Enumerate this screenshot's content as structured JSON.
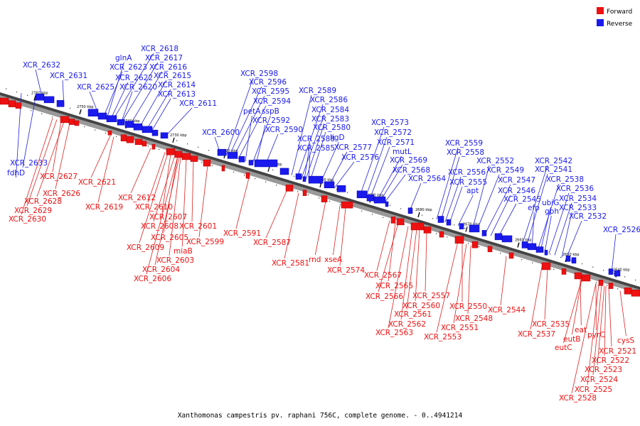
{
  "colors": {
    "forward": "#ee1111",
    "reverse": "#1a1aee",
    "forward_line": "#dd2222",
    "reverse_line": "#2222dd"
  },
  "legend": {
    "forward_label": "Forward",
    "reverse_label": "Reverse"
  },
  "caption": "Xanthomonas campestris pv. raphani 756C, complete genome. - 0..4941214",
  "ticks": [
    "2760 kbp",
    "2750 kbp",
    "2740 kbp",
    "2730 kbp",
    "2720 kbp",
    "2710 kbp",
    "2700 kbp",
    "2690 kbp",
    "2680 kbp",
    "2670 kbp",
    "2660 kbp",
    "2650 kbp",
    "2640 kbp"
  ],
  "reverse_labels": [
    "XCR_2632",
    "XCR_2631",
    "XCR_2625",
    "glnA",
    "XCR_2618",
    "XCR_2617",
    "XCR_2623",
    "XCR_2616",
    "XCR_2622",
    "XCR_2615",
    "XCR_2620",
    "XCR_2614",
    "XCR_2613",
    "XCR_2611",
    "XCR_2633",
    "fdhD",
    "XCR_2598",
    "XCR_2596",
    "XCR_2595",
    "XCR_2594",
    "petA",
    "sspB",
    "XCR_2592",
    "XCR_2600",
    "XCR_2590",
    "XCR_2589",
    "XCR_2586",
    "XCR_2584",
    "XCR_2583",
    "XCR_2580",
    "XCR_2588",
    "ligD",
    "XCR_2585",
    "XCR_2577",
    "XCR_2576",
    "XCR_2573",
    "XCR_2572",
    "XCR_2571",
    "mutL",
    "XCR_2569",
    "XCR_2568",
    "XCR_2564",
    "XCR_2559",
    "XCR_2558",
    "XCR_2556",
    "XCR_2555",
    "apt",
    "XCR_2552",
    "XCR_2549",
    "XCR_2547",
    "XCR_2546",
    "XCR_2545",
    "XCR_2542",
    "XCR_2541",
    "efp",
    "XCR_2538",
    "ubiG",
    "gph",
    "XCR_2536",
    "XCR_2534",
    "XCR_2533",
    "XCR_2532",
    "XCR_2526"
  ],
  "forward_labels": [
    "XCR_2627",
    "XCR_2626",
    "XCR_2628",
    "XCR_2629",
    "XCR_2630",
    "XCR_2621",
    "XCR_2619",
    "XCR_2612",
    "XCR_2610",
    "XCR_2607",
    "XCR_2608",
    "XCR_2605",
    "XCR_2609",
    "XCR_2603",
    "miaB",
    "XCR_2604",
    "XCR_2606",
    "XCR_2601",
    "XCR_2599",
    "XCR_2591",
    "XCR_2587",
    "XCR_2581",
    "rnd",
    "xseA",
    "XCR_2574",
    "XCR_2567",
    "XCR_2565",
    "XCR_2566",
    "XCR_2560",
    "XCR_2557",
    "XCR_2561",
    "XCR_2562",
    "XCR_2563",
    "XCR_2550",
    "XCR_2548",
    "XCR_2551",
    "XCR_2553",
    "XCR_2544",
    "XCR_2535",
    "XCR_2537",
    "eat",
    "eutB",
    "eutC",
    "pyrC",
    "cysS",
    "XCR_2521",
    "XCR_2522",
    "XCR_2523",
    "XCR_2524",
    "XCR_2525",
    "XCR_2528"
  ]
}
